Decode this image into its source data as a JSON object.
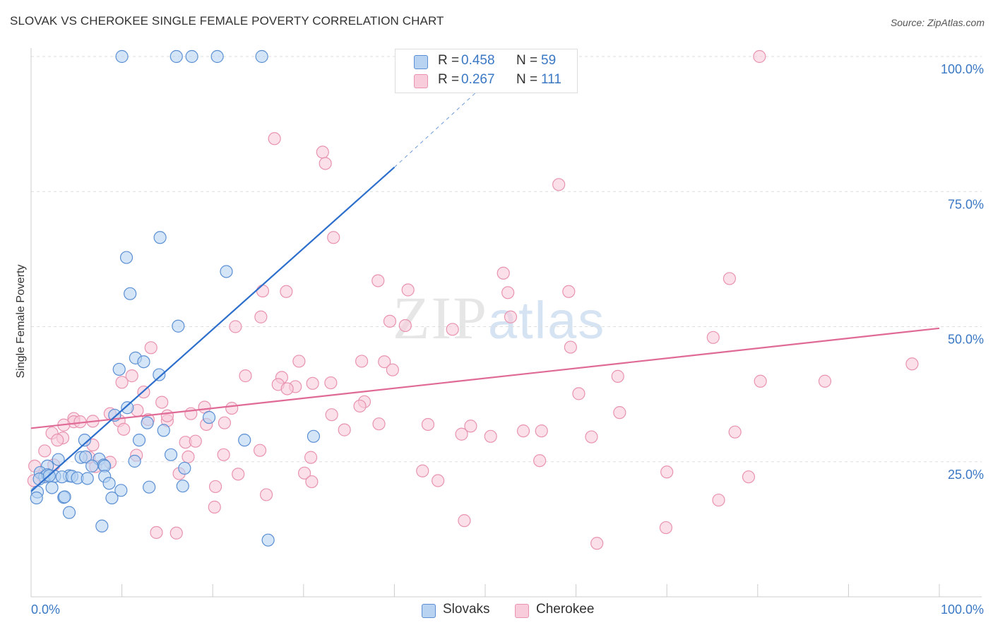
{
  "title": "SLOVAK VS CHEROKEE SINGLE FEMALE POVERTY CORRELATION CHART",
  "source": "Source: ZipAtlas.com",
  "watermark": {
    "zip": "ZIP",
    "atlas": "atlas"
  },
  "colors": {
    "slovaks_fill": "#b8d3f2",
    "slovaks_stroke": "#5b8fd3",
    "slovaks_line": "#2d6fcc",
    "cherokee_fill": "#f8ccdb",
    "cherokee_stroke": "#e893b0",
    "cherokee_line": "#e06a96",
    "tick_label": "#3b78c4",
    "grid": "#dedede"
  },
  "legend": {
    "slovaks": {
      "r_label": "R =",
      "r_value": "0.458",
      "n_label": "N =",
      "n_value": "59"
    },
    "cherokee": {
      "r_label": "R =",
      "r_value": "0.267",
      "n_label": "N =",
      "n_value": "111"
    }
  },
  "bottom_legend": {
    "slovaks": "Slovaks",
    "cherokee": "Cherokee"
  },
  "chart_data": {
    "type": "scatter",
    "title": "SLOVAK VS CHEROKEE SINGLE FEMALE POVERTY CORRELATION CHART",
    "xlabel": "",
    "ylabel": "Single Female Poverty",
    "xlim": [
      0,
      100
    ],
    "ylim": [
      0,
      100
    ],
    "x_tick_labels": [
      "0.0%",
      "100.0%"
    ],
    "y_tick_labels": [
      "25.0%",
      "50.0%",
      "75.0%",
      "100.0%"
    ],
    "y_ticks": [
      25,
      50,
      75,
      100
    ],
    "grid": true,
    "legend_position": "top-center",
    "series": [
      {
        "name": "Slovaks",
        "r": 0.458,
        "n": 59,
        "trend": {
          "x0": 0,
          "y0": 19.5,
          "x1": 40,
          "y1": 79.5,
          "dash_to_x": 52,
          "dash_to_y": 98
        },
        "points": [
          [
            10,
            100
          ],
          [
            16,
            100
          ],
          [
            17.7,
            100
          ],
          [
            20.5,
            100
          ],
          [
            25.4,
            100
          ],
          [
            14.2,
            66.5
          ],
          [
            10.5,
            62.8
          ],
          [
            21.5,
            60.2
          ],
          [
            10.9,
            56.1
          ],
          [
            16.2,
            50.1
          ],
          [
            11.5,
            44.2
          ],
          [
            12.4,
            43.5
          ],
          [
            9.7,
            42.1
          ],
          [
            14.1,
            41.1
          ],
          [
            10.6,
            35.0
          ],
          [
            9.2,
            33.6
          ],
          [
            12.8,
            32.2
          ],
          [
            14.6,
            30.8
          ],
          [
            19.6,
            33.2
          ],
          [
            11.9,
            29.0
          ],
          [
            23.5,
            29.0
          ],
          [
            31.1,
            29.7
          ],
          [
            5.9,
            29.0
          ],
          [
            15.4,
            26.3
          ],
          [
            5.5,
            25.8
          ],
          [
            6.0,
            25.9
          ],
          [
            7.5,
            25.5
          ],
          [
            11.4,
            25.1
          ],
          [
            3.0,
            25.4
          ],
          [
            6.7,
            24.2
          ],
          [
            8.0,
            24.4
          ],
          [
            8.1,
            24.2
          ],
          [
            16.9,
            23.8
          ],
          [
            1.8,
            24.2
          ],
          [
            1.0,
            23.0
          ],
          [
            1.5,
            22.2
          ],
          [
            1.8,
            22.6
          ],
          [
            2.6,
            22.3
          ],
          [
            4.2,
            22.4
          ],
          [
            3.4,
            22.2
          ],
          [
            4.5,
            22.3
          ],
          [
            5.1,
            22.0
          ],
          [
            6.2,
            21.9
          ],
          [
            0.9,
            21.8
          ],
          [
            8.1,
            22.3
          ],
          [
            8.6,
            21.0
          ],
          [
            16.7,
            20.5
          ],
          [
            13.0,
            20.3
          ],
          [
            2.3,
            20.2
          ],
          [
            9.9,
            19.7
          ],
          [
            0.7,
            19.4
          ],
          [
            3.6,
            18.4
          ],
          [
            0.6,
            18.3
          ],
          [
            8.9,
            18.3
          ],
          [
            3.7,
            18.5
          ],
          [
            4.2,
            15.6
          ],
          [
            7.8,
            13.1
          ],
          [
            26.1,
            10.5
          ],
          [
            2.0,
            22.4
          ]
        ]
      },
      {
        "name": "Cherokee",
        "r": 0.267,
        "n": 111,
        "trend": {
          "x0": 0,
          "y0": 31.2,
          "x1": 100,
          "y1": 49.7
        },
        "points": [
          [
            80.2,
            100
          ],
          [
            26.8,
            84.8
          ],
          [
            32.1,
            82.3
          ],
          [
            32.4,
            80.2
          ],
          [
            58.1,
            76.3
          ],
          [
            33.3,
            66.5
          ],
          [
            52,
            59.9
          ],
          [
            76.9,
            58.9
          ],
          [
            38.2,
            58.5
          ],
          [
            41.5,
            56.8
          ],
          [
            25.5,
            56.6
          ],
          [
            28.1,
            56.5
          ],
          [
            52.5,
            56.3
          ],
          [
            59.2,
            56.5
          ],
          [
            25.3,
            51.8
          ],
          [
            52.8,
            51.8
          ],
          [
            39.5,
            51.0
          ],
          [
            41.2,
            50.2
          ],
          [
            22.5,
            50.0
          ],
          [
            46.4,
            49.5
          ],
          [
            75.1,
            48.0
          ],
          [
            13.2,
            46.1
          ],
          [
            59.4,
            46.2
          ],
          [
            36.4,
            43.6
          ],
          [
            29.5,
            43.6
          ],
          [
            38.9,
            43.5
          ],
          [
            97,
            43.1
          ],
          [
            39.8,
            42.0
          ],
          [
            23.6,
            40.9
          ],
          [
            11.1,
            40.9
          ],
          [
            64.6,
            40.8
          ],
          [
            27.6,
            40.6
          ],
          [
            10,
            39.7
          ],
          [
            33,
            39.6
          ],
          [
            31,
            39.5
          ],
          [
            80.3,
            39.9
          ],
          [
            87.4,
            39.9
          ],
          [
            27.2,
            39.3
          ],
          [
            29.1,
            38.9
          ],
          [
            28.2,
            38.5
          ],
          [
            12.4,
            37.9
          ],
          [
            60.3,
            37.6
          ],
          [
            36.7,
            36.1
          ],
          [
            14.4,
            36.0
          ],
          [
            22.1,
            34.9
          ],
          [
            19.1,
            35.1
          ],
          [
            36.2,
            35.3
          ],
          [
            11.7,
            34.5
          ],
          [
            8.7,
            33.9
          ],
          [
            64.8,
            34.1
          ],
          [
            17.6,
            33.9
          ],
          [
            33.1,
            33.7
          ],
          [
            4.7,
            33.0
          ],
          [
            12.9,
            32.8
          ],
          [
            15,
            32.6
          ],
          [
            6.8,
            32.5
          ],
          [
            9.7,
            32.6
          ],
          [
            4.7,
            32.4
          ],
          [
            5.4,
            32.4
          ],
          [
            21.3,
            32.2
          ],
          [
            38.3,
            32.0
          ],
          [
            19.3,
            31.9
          ],
          [
            3.6,
            31.8
          ],
          [
            43.7,
            31.9
          ],
          [
            48.4,
            31.6
          ],
          [
            10.2,
            31.0
          ],
          [
            34.5,
            30.9
          ],
          [
            54.2,
            30.7
          ],
          [
            77.5,
            30.5
          ],
          [
            56.2,
            30.7
          ],
          [
            47.4,
            30.1
          ],
          [
            2.3,
            30.3
          ],
          [
            3.5,
            29.4
          ],
          [
            61.7,
            29.6
          ],
          [
            50.6,
            29.7
          ],
          [
            17,
            28.6
          ],
          [
            18.1,
            28.8
          ],
          [
            2.9,
            29.0
          ],
          [
            6.8,
            28.1
          ],
          [
            1.5,
            27.0
          ],
          [
            25.2,
            27.1
          ],
          [
            11.6,
            26.2
          ],
          [
            21.2,
            26.3
          ],
          [
            17.3,
            25.9
          ],
          [
            30.8,
            25.8
          ],
          [
            6.4,
            25.8
          ],
          [
            8.7,
            24.9
          ],
          [
            2.5,
            24.4
          ],
          [
            7.1,
            24.1
          ],
          [
            56,
            25.2
          ],
          [
            43.1,
            23.3
          ],
          [
            0.4,
            24.2
          ],
          [
            30.1,
            22.9
          ],
          [
            16.3,
            22.8
          ],
          [
            22.8,
            22.7
          ],
          [
            70,
            23.1
          ],
          [
            79,
            22.2
          ],
          [
            1.3,
            22.3
          ],
          [
            30.9,
            21.3
          ],
          [
            44.8,
            21.5
          ],
          [
            20.3,
            20.4
          ],
          [
            25.9,
            18.9
          ],
          [
            75.7,
            17.9
          ],
          [
            20.2,
            16.6
          ],
          [
            47.7,
            14.1
          ],
          [
            13.8,
            11.9
          ],
          [
            69.9,
            12.8
          ],
          [
            62.3,
            9.9
          ],
          [
            16,
            11.8
          ],
          [
            0.3,
            21.5
          ],
          [
            15,
            33.5
          ]
        ]
      }
    ]
  }
}
